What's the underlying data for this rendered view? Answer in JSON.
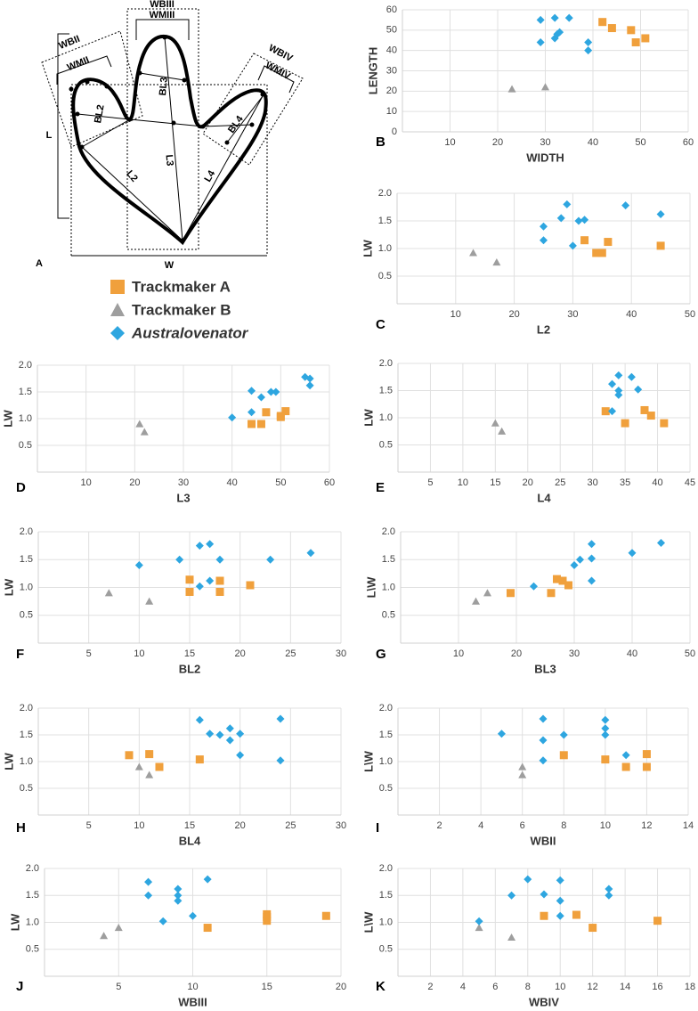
{
  "diagram": {
    "panel": "A",
    "labels": {
      "wbiii": "WBIII",
      "wmiii": "WMIII",
      "wbii": "WBII",
      "wmii": "WMII",
      "wbiv": "WBIV",
      "wmiv": "WMIV",
      "l": "L",
      "bl2": "BL2",
      "bl3": "BL3",
      "bl4": "BL4",
      "l2": "L2",
      "l3": "L3",
      "l4": "L4",
      "w": "W"
    }
  },
  "legend": [
    {
      "name": "Trackmaker A",
      "color": "#f0a03c",
      "marker": "square"
    },
    {
      "name": "Trackmaker B",
      "color": "#9e9e9e",
      "marker": "triangle"
    },
    {
      "name": "Australovenator",
      "color": "#2ea6e0",
      "marker": "diamond"
    }
  ],
  "chart_data": [
    {
      "type": "scatter",
      "panel": "B",
      "xlabel": "WIDTH",
      "ylabel": "LENGTH",
      "xlim": [
        0,
        60
      ],
      "ylim": [
        0,
        60
      ],
      "xticks": [
        10,
        20,
        30,
        40,
        50,
        60
      ],
      "yticks": [
        0,
        10,
        20,
        30,
        40,
        50,
        60
      ],
      "grid": true,
      "series": [
        {
          "x": [
            42,
            44,
            48,
            49,
            51
          ],
          "values": [
            54,
            51,
            50,
            44,
            46
          ]
        },
        {
          "x": [
            23,
            30
          ],
          "values": [
            21,
            22
          ]
        },
        {
          "x": [
            29,
            32,
            35,
            29,
            32,
            32.5,
            33,
            39,
            39
          ],
          "values": [
            55,
            56,
            56,
            44,
            46,
            48,
            49,
            44,
            40
          ]
        }
      ]
    },
    {
      "type": "scatter",
      "panel": "C",
      "xlabel": "L2",
      "ylabel": "LW",
      "xlim": [
        0,
        50
      ],
      "ylim": [
        0,
        2
      ],
      "xticks": [
        10,
        20,
        30,
        40,
        50
      ],
      "yticks": [
        0.5,
        {
          "value": 1,
          "label": "1.0"
        },
        1.5,
        {
          "value": 2,
          "label": "2.0"
        }
      ],
      "grid": true,
      "series": [
        {
          "x": [
            32,
            34,
            35,
            36,
            45
          ],
          "values": [
            1.15,
            0.92,
            0.92,
            1.12,
            1.05
          ]
        },
        {
          "x": [
            13,
            17
          ],
          "values": [
            0.92,
            0.75
          ]
        },
        {
          "x": [
            25,
            25,
            28,
            29,
            30,
            31,
            32,
            39,
            45
          ],
          "values": [
            1.4,
            1.15,
            1.55,
            1.8,
            1.05,
            1.5,
            1.52,
            1.78,
            1.62
          ]
        }
      ]
    },
    {
      "type": "scatter",
      "panel": "D",
      "xlabel": "L3",
      "ylabel": "LW",
      "xlim": [
        0,
        60
      ],
      "ylim": [
        0,
        2
      ],
      "xticks": [
        10,
        20,
        30,
        40,
        50,
        60
      ],
      "yticks": [
        0.5,
        {
          "value": 1,
          "label": "1.0"
        },
        1.5,
        {
          "value": 2,
          "label": "2.0"
        }
      ],
      "grid": true,
      "series": [
        {
          "x": [
            44,
            46,
            47,
            50,
            50,
            51
          ],
          "values": [
            0.9,
            0.9,
            1.12,
            1.03,
            1.05,
            1.14
          ]
        },
        {
          "x": [
            21,
            22
          ],
          "values": [
            0.9,
            0.75
          ]
        },
        {
          "x": [
            55,
            56,
            56,
            44,
            46,
            48,
            49,
            44,
            40
          ],
          "values": [
            1.78,
            1.75,
            1.62,
            1.52,
            1.4,
            1.5,
            1.5,
            1.12,
            1.02
          ]
        }
      ]
    },
    {
      "type": "scatter",
      "panel": "E",
      "xlabel": "L4",
      "ylabel": "LW",
      "xlim": [
        0,
        45
      ],
      "ylim": [
        0,
        2
      ],
      "xticks": [
        5,
        10,
        15,
        20,
        25,
        30,
        35,
        40,
        45
      ],
      "yticks": [
        0.5,
        {
          "value": 1,
          "label": "1.0"
        },
        1.5,
        {
          "value": 2,
          "label": "2.0"
        }
      ],
      "grid": true,
      "series": [
        {
          "x": [
            32,
            35,
            38,
            39,
            41
          ],
          "values": [
            1.12,
            0.9,
            1.14,
            1.04,
            0.9
          ]
        },
        {
          "x": [
            15,
            16
          ],
          "values": [
            0.9,
            0.75
          ]
        },
        {
          "x": [
            34,
            36,
            33,
            34,
            34,
            37,
            33
          ],
          "values": [
            1.78,
            1.75,
            1.62,
            1.5,
            1.42,
            1.52,
            1.12
          ]
        }
      ]
    },
    {
      "type": "scatter",
      "panel": "F",
      "xlabel": "BL2",
      "ylabel": "LW",
      "xlim": [
        0,
        30
      ],
      "ylim": [
        0,
        2
      ],
      "xticks": [
        5,
        10,
        15,
        20,
        25,
        30
      ],
      "yticks": [
        0.5,
        {
          "value": 1,
          "label": "1.0"
        },
        1.5,
        {
          "value": 2,
          "label": "2.0"
        }
      ],
      "grid": true,
      "series": [
        {
          "x": [
            15,
            15,
            18,
            18,
            21
          ],
          "values": [
            1.14,
            0.92,
            1.12,
            0.92,
            1.04
          ]
        },
        {
          "x": [
            7,
            11
          ],
          "values": [
            0.9,
            0.75
          ]
        },
        {
          "x": [
            10,
            14,
            16,
            17,
            18,
            16,
            17,
            23,
            27
          ],
          "values": [
            1.4,
            1.5,
            1.75,
            1.78,
            1.5,
            1.02,
            1.12,
            1.5,
            1.62
          ]
        }
      ]
    },
    {
      "type": "scatter",
      "panel": "G",
      "xlabel": "BL3",
      "ylabel": "L\\W",
      "xlim": [
        0,
        50
      ],
      "ylim": [
        0,
        2
      ],
      "xticks": [
        10,
        20,
        30,
        40,
        50
      ],
      "yticks": [
        0.5,
        {
          "value": 1,
          "label": "1.0"
        },
        1.5,
        {
          "value": 2,
          "label": "2.0"
        }
      ],
      "grid": true,
      "series": [
        {
          "x": [
            19,
            26,
            27,
            28,
            29
          ],
          "values": [
            0.9,
            0.9,
            1.15,
            1.12,
            1.04
          ]
        },
        {
          "x": [
            13,
            15
          ],
          "values": [
            0.75,
            0.9
          ]
        },
        {
          "x": [
            23,
            30,
            31,
            33,
            33,
            33,
            40,
            45
          ],
          "values": [
            1.02,
            1.4,
            1.5,
            1.52,
            1.78,
            1.12,
            1.62,
            1.8
          ]
        }
      ]
    },
    {
      "type": "scatter",
      "panel": "H",
      "xlabel": "BL4",
      "ylabel": "LW",
      "xlim": [
        0,
        30
      ],
      "ylim": [
        0,
        2
      ],
      "xticks": [
        5,
        10,
        15,
        20,
        25,
        30
      ],
      "yticks": [
        0.5,
        {
          "value": 1,
          "label": "1.0"
        },
        1.5,
        {
          "value": 2,
          "label": "2.0"
        }
      ],
      "grid": true,
      "series": [
        {
          "x": [
            9,
            11,
            12,
            16
          ],
          "values": [
            1.12,
            1.14,
            0.9,
            1.04
          ]
        },
        {
          "x": [
            10,
            11
          ],
          "values": [
            0.9,
            0.75
          ]
        },
        {
          "x": [
            16,
            17,
            18,
            19,
            19,
            20,
            20,
            24,
            24
          ],
          "values": [
            1.78,
            1.52,
            1.5,
            1.62,
            1.4,
            1.52,
            1.12,
            1.8,
            1.02
          ]
        }
      ]
    },
    {
      "type": "scatter",
      "panel": "I",
      "xlabel": "WBII",
      "ylabel": "L\\W",
      "xlim": [
        0,
        14
      ],
      "ylim": [
        0,
        2
      ],
      "xticks": [
        2,
        4,
        6,
        8,
        10,
        12,
        14
      ],
      "yticks": [
        0.5,
        {
          "value": 1,
          "label": "1.0"
        },
        1.5,
        {
          "value": 2,
          "label": "2.0"
        }
      ],
      "grid": true,
      "series": [
        {
          "x": [
            8,
            10,
            11,
            12,
            12
          ],
          "values": [
            1.12,
            1.04,
            0.9,
            1.14,
            0.9
          ]
        },
        {
          "x": [
            6,
            6
          ],
          "values": [
            0.9,
            0.75
          ]
        },
        {
          "x": [
            5,
            7,
            7,
            7,
            8,
            10,
            10,
            10,
            11
          ],
          "values": [
            1.52,
            1.8,
            1.4,
            1.02,
            1.5,
            1.78,
            1.62,
            1.5,
            1.12
          ]
        }
      ]
    },
    {
      "type": "scatter",
      "panel": "J",
      "xlabel": "WBIII",
      "ylabel": "LW",
      "xlim": [
        0,
        20
      ],
      "ylim": [
        0,
        2
      ],
      "xticks": [
        5,
        10,
        15,
        20
      ],
      "yticks": [
        0.5,
        {
          "value": 1,
          "label": "1.0"
        },
        1.5,
        {
          "value": 2,
          "label": "2.0"
        }
      ],
      "grid": true,
      "series": [
        {
          "x": [
            11,
            15,
            15,
            15,
            19
          ],
          "values": [
            0.9,
            1.15,
            1.1,
            1.03,
            1.12
          ]
        },
        {
          "x": [
            4,
            5
          ],
          "values": [
            0.75,
            0.9
          ]
        },
        {
          "x": [
            7,
            7,
            9,
            9,
            9,
            8,
            10,
            11
          ],
          "values": [
            1.75,
            1.5,
            1.62,
            1.5,
            1.4,
            1.02,
            1.12,
            1.8
          ]
        }
      ]
    },
    {
      "type": "scatter",
      "panel": "K",
      "xlabel": "WBIV",
      "ylabel": "L\\W",
      "xlim": [
        0,
        18
      ],
      "ylim": [
        0,
        2
      ],
      "xticks": [
        2,
        4,
        6,
        8,
        10,
        12,
        14,
        16,
        18
      ],
      "yticks": [
        0.5,
        {
          "value": 1,
          "label": "1.0"
        },
        1.5,
        {
          "value": 2,
          "label": "2.0"
        }
      ],
      "grid": true,
      "series": [
        {
          "x": [
            9,
            11,
            12,
            16
          ],
          "values": [
            1.12,
            1.14,
            0.9,
            1.03
          ]
        },
        {
          "x": [
            5,
            7
          ],
          "values": [
            0.9,
            0.72
          ]
        },
        {
          "x": [
            5,
            7,
            8,
            9,
            10,
            10,
            10,
            13,
            13
          ],
          "values": [
            1.02,
            1.5,
            1.8,
            1.52,
            1.78,
            1.4,
            1.12,
            1.62,
            1.5
          ]
        }
      ]
    }
  ]
}
